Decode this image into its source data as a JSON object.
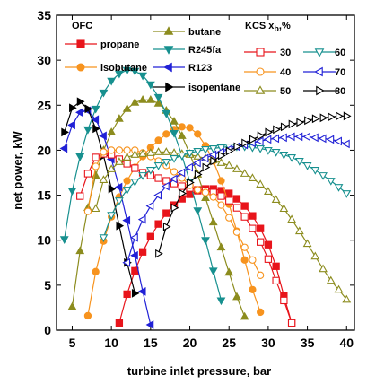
{
  "chart_data": {
    "type": "line",
    "title": "",
    "xlabel": "turbine inlet pressure, bar",
    "ylabel": "net power, kW",
    "xlim": [
      3,
      41
    ],
    "ylim": [
      0,
      35
    ],
    "xticks": [
      5,
      10,
      15,
      20,
      25,
      30,
      35,
      40
    ],
    "yticks": [
      0,
      5,
      10,
      15,
      20,
      25,
      30,
      35
    ],
    "legend_groups": {
      "ofc": "OFC",
      "kcs_prefix": "KCS x",
      "kcs_sub": "b",
      "kcs_suffix": ",%"
    },
    "series": [
      {
        "name": "propane",
        "group": "ofc",
        "color": "#e8141b",
        "marker": "square",
        "filled": true,
        "x": [
          11,
          12,
          13,
          14,
          15,
          16,
          17,
          18,
          19,
          20,
          21,
          22,
          23,
          24,
          25,
          26,
          27,
          28,
          29,
          30,
          31,
          32,
          33
        ],
        "y": [
          0.8,
          4,
          6.6,
          8.7,
          10.4,
          11.8,
          13,
          13.9,
          14.6,
          15.1,
          15.5,
          15.7,
          15.7,
          15.5,
          15.2,
          14.6,
          13.8,
          12.7,
          11.3,
          9.5,
          7.1,
          3.8,
          0.8
        ]
      },
      {
        "name": "isobutane",
        "group": "ofc",
        "color": "#f7931e",
        "marker": "circle",
        "filled": true,
        "x": [
          7,
          8,
          9,
          10,
          11,
          12,
          13,
          14,
          15,
          16,
          17,
          18,
          19,
          20,
          21,
          22,
          23,
          24,
          25,
          26,
          27,
          28,
          29
        ],
        "y": [
          1.6,
          6.5,
          9.9,
          12.6,
          14.8,
          16.6,
          18.1,
          19.3,
          20.3,
          21.1,
          21.8,
          22.3,
          22.6,
          22.5,
          21.8,
          20.5,
          18.8,
          16.6,
          14,
          11,
          7.8,
          4.5,
          2
        ]
      },
      {
        "name": "butane",
        "group": "ofc",
        "color": "#8c8c1e",
        "marker": "triangle-up",
        "filled": true,
        "x": [
          5,
          6,
          7,
          8,
          9,
          10,
          11,
          12,
          13,
          14,
          15,
          16,
          17,
          18,
          19,
          20,
          21,
          22,
          23,
          24,
          25,
          26,
          27
        ],
        "y": [
          2.6,
          8.8,
          13.6,
          17.2,
          20,
          22,
          23.5,
          24.6,
          25.3,
          25.6,
          25.6,
          25.2,
          24.4,
          23.2,
          21.6,
          19.6,
          17.3,
          14.7,
          12,
          9.2,
          6.4,
          3.7,
          1.5
        ]
      },
      {
        "name": "R245fa",
        "group": "ofc",
        "color": "#17908f",
        "marker": "triangle-down",
        "filled": true,
        "x": [
          4,
          5,
          6,
          7,
          8,
          9,
          10,
          11,
          12,
          13,
          14,
          15,
          16,
          17,
          18,
          19,
          20,
          21,
          22,
          23,
          24
        ],
        "y": [
          10.1,
          15.5,
          19.3,
          22.3,
          24.6,
          26.4,
          27.7,
          28.5,
          28.9,
          28.8,
          28.3,
          27.3,
          25.9,
          24.1,
          21.9,
          19.4,
          16.5,
          13.3,
          10,
          6.6,
          3.3
        ]
      },
      {
        "name": "R123",
        "group": "ofc",
        "color": "#2121d6",
        "marker": "triangle-left",
        "filled": true,
        "x": [
          4,
          5,
          6,
          7,
          8,
          9,
          10,
          11,
          12,
          13,
          14,
          15
        ],
        "y": [
          20.2,
          22.8,
          24.2,
          24.4,
          23.4,
          21.6,
          19,
          15.9,
          12.2,
          8.3,
          4.3,
          0.6
        ]
      },
      {
        "name": "isopentane",
        "group": "ofc",
        "color": "#000000",
        "marker": "triangle-right",
        "filled": true,
        "x": [
          4,
          5,
          6,
          7,
          8,
          9,
          10,
          11,
          12,
          13
        ],
        "y": [
          22,
          24.7,
          25.4,
          24.6,
          22.4,
          19.4,
          15.7,
          11.6,
          7.5,
          4.1
        ]
      },
      {
        "name": "30",
        "group": "kcs",
        "color": "#e8141b",
        "marker": "square",
        "filled": false,
        "x": [
          6,
          7,
          8,
          9,
          10,
          11,
          12,
          13,
          14,
          15,
          16,
          17,
          18,
          19,
          20,
          21,
          22,
          23,
          24,
          25,
          26,
          27,
          28,
          29,
          30,
          31,
          32,
          33
        ],
        "y": [
          14.9,
          17.4,
          19.2,
          19.6,
          19.5,
          19,
          18.5,
          18,
          17.5,
          17.2,
          16.9,
          16.6,
          16.3,
          16,
          15.8,
          15.6,
          15.5,
          15.3,
          14.9,
          14.4,
          13.6,
          12.6,
          11.3,
          9.8,
          7.9,
          5.5,
          3.3,
          0.8
        ]
      },
      {
        "name": "40",
        "group": "kcs",
        "color": "#f7931e",
        "marker": "circle",
        "filled": false,
        "x": [
          7,
          8,
          9,
          10,
          11,
          12,
          13,
          14,
          15,
          16,
          17,
          18,
          19,
          20,
          21,
          22,
          23,
          24,
          25,
          26,
          27,
          28,
          29
        ],
        "y": [
          13.2,
          18.2,
          19.8,
          20,
          20,
          20,
          20,
          19.7,
          19.3,
          18.8,
          18.3,
          17.6,
          16.9,
          16.1,
          15.6,
          15.3,
          14.8,
          13.9,
          12.5,
          10.9,
          9.2,
          7.8,
          6.1
        ]
      },
      {
        "name": "50",
        "group": "kcs",
        "color": "#8c8c1e",
        "marker": "triangle-up",
        "filled": false,
        "x": [
          8,
          9,
          10,
          11,
          12,
          13,
          14,
          15,
          16,
          17,
          18,
          19,
          20,
          21,
          22,
          23,
          24,
          25,
          26,
          27,
          28,
          29,
          30,
          31,
          32,
          33,
          34,
          35,
          36,
          37,
          38,
          39,
          40
        ],
        "y": [
          13.5,
          16.7,
          17.9,
          18.7,
          19.2,
          19.5,
          19.6,
          19.7,
          19.8,
          19.8,
          19.7,
          19.6,
          19.5,
          19.3,
          19.1,
          18.9,
          18.6,
          18.3,
          17.9,
          17.4,
          16.9,
          16.2,
          15.4,
          14.5,
          13.5,
          12.3,
          11,
          9.6,
          8.2,
          6.8,
          5.5,
          4.5,
          3.4
        ]
      },
      {
        "name": "60",
        "group": "kcs",
        "color": "#17908f",
        "marker": "triangle-down",
        "filled": false,
        "x": [
          9,
          10,
          11,
          12,
          13,
          14,
          15,
          16,
          17,
          18,
          19,
          20,
          21,
          22,
          23,
          24,
          25,
          26,
          27,
          28,
          29,
          30,
          31,
          32,
          33,
          34,
          35,
          36,
          37,
          38,
          39,
          40
        ],
        "y": [
          10.3,
          12.8,
          14.4,
          15.6,
          16.5,
          17.2,
          17.8,
          18.3,
          18.7,
          19.1,
          19.4,
          19.7,
          19.9,
          20.1,
          20.2,
          20.3,
          20.4,
          20.4,
          20.4,
          20.3,
          20.2,
          20,
          19.8,
          19.5,
          19.2,
          18.8,
          18.3,
          17.8,
          17.2,
          16.6,
          15.9,
          15.2
        ]
      },
      {
        "name": "70",
        "group": "kcs",
        "color": "#2121d6",
        "marker": "triangle-left",
        "filled": false,
        "x": [
          12,
          13,
          14,
          15,
          16,
          17,
          18,
          19,
          20,
          21,
          22,
          23,
          24,
          25,
          26,
          27,
          28,
          29,
          30,
          31,
          32,
          33,
          34,
          35,
          36,
          37,
          38,
          39,
          40
        ],
        "y": [
          7.5,
          10.3,
          12.3,
          13.8,
          15,
          16,
          16.8,
          17.5,
          18.1,
          18.6,
          19.1,
          19.5,
          19.8,
          20.1,
          20.4,
          20.6,
          20.8,
          21,
          21.2,
          21.3,
          21.4,
          21.5,
          21.5,
          21.5,
          21.4,
          21.3,
          21.2,
          21,
          20.7
        ]
      },
      {
        "name": "80",
        "group": "kcs",
        "color": "#000000",
        "marker": "triangle-right",
        "filled": false,
        "x": [
          16,
          17,
          18,
          19,
          20,
          21,
          22,
          23,
          24,
          25,
          26,
          27,
          28,
          29,
          30,
          31,
          32,
          33,
          34,
          35,
          36,
          37,
          38,
          39,
          40
        ],
        "y": [
          8.5,
          11.5,
          13.6,
          15.2,
          16.4,
          17.3,
          18.1,
          18.8,
          19.4,
          19.9,
          20.4,
          20.8,
          21.2,
          21.6,
          22,
          22.3,
          22.6,
          22.9,
          23.1,
          23.3,
          23.5,
          23.6,
          23.7,
          23.8,
          23.8
        ]
      }
    ]
  }
}
